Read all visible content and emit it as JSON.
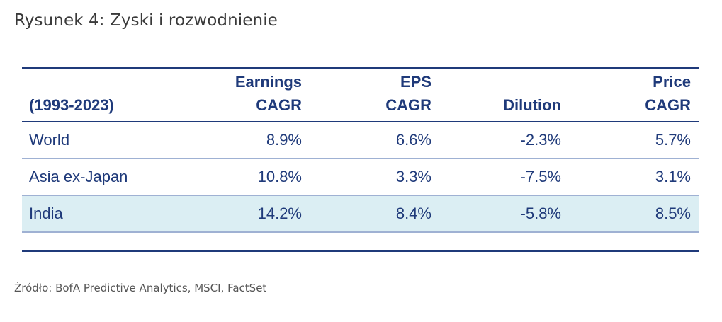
{
  "title": "Rysunek 4: Zyski i rozwodnienie",
  "source": "Źródło: BofA Predictive Analytics, MSCI, FactSet",
  "colors": {
    "text": "#1f3a7a",
    "rule": "#1f3a7a",
    "highlight_row": "#dbeef3"
  },
  "chart_data": {
    "type": "table",
    "title": "Rysunek 4: Zyski i rozwodnienie",
    "columns": [
      {
        "line1": "",
        "line2": "(1993-2023)"
      },
      {
        "line1": "Earnings",
        "line2": "CAGR"
      },
      {
        "line1": "EPS",
        "line2": "CAGR"
      },
      {
        "line1": "",
        "line2": "Dilution"
      },
      {
        "line1": "Price",
        "line2": "CAGR"
      }
    ],
    "rows": [
      {
        "label": "World",
        "cells": [
          "8.9%",
          "6.6%",
          "-2.3%",
          "5.7%"
        ],
        "values": [
          8.9,
          6.6,
          -2.3,
          5.7
        ],
        "highlighted": false
      },
      {
        "label": "Asia ex-Japan",
        "cells": [
          "10.8%",
          "3.3%",
          "-7.5%",
          "3.1%"
        ],
        "values": [
          10.8,
          3.3,
          -7.5,
          3.1
        ],
        "highlighted": false
      },
      {
        "label": "India",
        "cells": [
          "14.2%",
          "8.4%",
          "-5.8%",
          "8.5%"
        ],
        "values": [
          14.2,
          8.4,
          -5.8,
          8.5
        ],
        "highlighted": true
      }
    ]
  }
}
